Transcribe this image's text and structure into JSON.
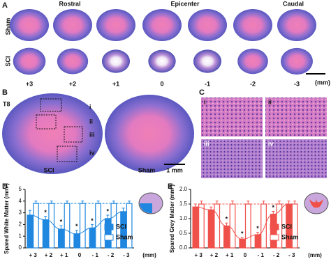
{
  "panel_a": {
    "label": "A",
    "sections": [
      "Rostral",
      "Epicenter",
      "Caudal"
    ],
    "rows": [
      "Sham",
      "SCI"
    ],
    "positions": [
      "+3",
      "+2",
      "+1",
      "0",
      "-1",
      "-2",
      "-3"
    ],
    "unit": "(mm)"
  },
  "panel_b": {
    "label": "B",
    "level": "T8",
    "regions": [
      "i",
      "ii",
      "iii",
      "iv"
    ],
    "images": [
      "SCI",
      "Sham"
    ],
    "scale": "1 mm"
  },
  "panel_c": {
    "label": "C",
    "tiles": [
      "i",
      "ii",
      "iii",
      "iv"
    ]
  },
  "chart_data": [
    {
      "type": "bar",
      "panel": "D",
      "y_label": "Spared White Matter (mm²)",
      "x_label": "(mm)",
      "categories": [
        "+ 3",
        "+ 2",
        "+ 1",
        "0",
        "- 1",
        "- 2",
        "- 3"
      ],
      "series": [
        {
          "name": "SCI",
          "color": "#1f87e0",
          "style": "filled",
          "values": [
            2.8,
            2.4,
            1.6,
            1.2,
            1.7,
            2.5,
            3.1
          ],
          "errors": [
            0.4,
            0.3,
            0.3,
            0.3,
            0.3,
            0.3,
            0.3
          ]
        },
        {
          "name": "Sham",
          "color": "#1f87e0",
          "style": "outline",
          "values": [
            3.8,
            3.8,
            3.8,
            3.8,
            3.8,
            3.8,
            3.8
          ],
          "errors": [
            0.2,
            0.2,
            0.2,
            0.2,
            0.2,
            0.2,
            0.2
          ]
        }
      ],
      "significance": [
        null,
        "*",
        "*",
        "*",
        "*",
        "*",
        null
      ],
      "ylim": [
        0,
        5
      ],
      "yticks": [
        0,
        1,
        2,
        3,
        4,
        5
      ]
    },
    {
      "type": "bar",
      "panel": "E",
      "y_label": "Spared Grey Matter (mm²)",
      "x_label": "(mm)",
      "categories": [
        "+ 3",
        "+ 2",
        "+ 1",
        "0",
        "- 1",
        "- 2",
        "- 3"
      ],
      "series": [
        {
          "name": "SCI",
          "color": "#f0504a",
          "style": "filled",
          "values": [
            1.4,
            1.3,
            0.75,
            0.3,
            0.45,
            1.15,
            1.5
          ],
          "errors": [
            0.1,
            0.1,
            0.1,
            0.05,
            0.08,
            0.1,
            0.1
          ]
        },
        {
          "name": "Sham",
          "color": "#f0504a",
          "style": "outline",
          "values": [
            1.5,
            1.5,
            1.5,
            1.5,
            1.5,
            1.5,
            1.5
          ],
          "errors": [
            0.1,
            0.1,
            0.1,
            0.1,
            0.1,
            0.1,
            0.1
          ]
        }
      ],
      "significance": [
        null,
        null,
        "*",
        "*",
        "*",
        "*",
        null
      ],
      "ylim": [
        0,
        2
      ],
      "yticks": [
        {
          "value": 0,
          "label": "0.0"
        },
        {
          "value": 0.5,
          "label": "0.5"
        },
        {
          "value": 1,
          "label": "1.0"
        },
        {
          "value": 1.5,
          "label": "1.5"
        },
        {
          "value": 2,
          "label": "2.0"
        }
      ]
    }
  ]
}
